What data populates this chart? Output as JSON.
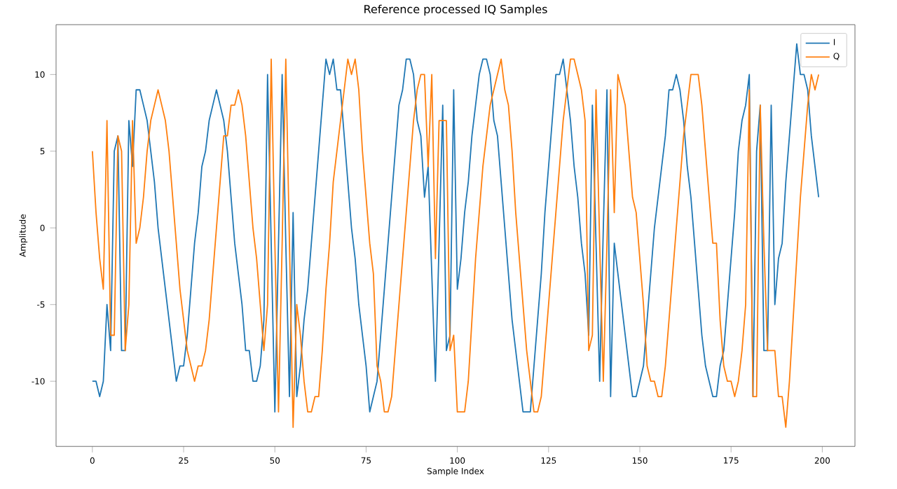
{
  "chart_data": {
    "type": "line",
    "title": "Reference processed IQ Samples",
    "xlabel": "Sample Index",
    "ylabel": "Amplitude",
    "xlim": [
      -9.95,
      208.95
    ],
    "ylim": [
      -14.25,
      13.25
    ],
    "xticks": [
      0,
      25,
      50,
      75,
      100,
      125,
      150,
      175,
      200
    ],
    "yticks": [
      -10,
      -5,
      0,
      5,
      10
    ],
    "x": [
      0,
      1,
      2,
      3,
      4,
      5,
      6,
      7,
      8,
      9,
      10,
      11,
      12,
      13,
      14,
      15,
      16,
      17,
      18,
      19,
      20,
      21,
      22,
      23,
      24,
      25,
      26,
      27,
      28,
      29,
      30,
      31,
      32,
      33,
      34,
      35,
      36,
      37,
      38,
      39,
      40,
      41,
      42,
      43,
      44,
      45,
      46,
      47,
      48,
      49,
      50,
      51,
      52,
      53,
      54,
      55,
      56,
      57,
      58,
      59,
      60,
      61,
      62,
      63,
      64,
      65,
      66,
      67,
      68,
      69,
      70,
      71,
      72,
      73,
      74,
      75,
      76,
      77,
      78,
      79,
      80,
      81,
      82,
      83,
      84,
      85,
      86,
      87,
      88,
      89,
      90,
      91,
      92,
      93,
      94,
      95,
      96,
      97,
      98,
      99,
      100,
      101,
      102,
      103,
      104,
      105,
      106,
      107,
      108,
      109,
      110,
      111,
      112,
      113,
      114,
      115,
      116,
      117,
      118,
      119,
      120,
      121,
      122,
      123,
      124,
      125,
      126,
      127,
      128,
      129,
      130,
      131,
      132,
      133,
      134,
      135,
      136,
      137,
      138,
      139,
      140,
      141,
      142,
      143,
      144,
      145,
      146,
      147,
      148,
      149,
      150,
      151,
      152,
      153,
      154,
      155,
      156,
      157,
      158,
      159,
      160,
      161,
      162,
      163,
      164,
      165,
      166,
      167,
      168,
      169,
      170,
      171,
      172,
      173,
      174,
      175,
      176,
      177,
      178,
      179,
      180,
      181,
      182,
      183,
      184,
      185,
      186,
      187,
      188,
      189,
      190,
      191,
      192,
      193,
      194,
      195,
      196,
      197,
      198,
      199
    ],
    "legend": "top right",
    "grid": false,
    "marker": "none",
    "line_style": "solid",
    "series": [
      {
        "name": "I",
        "color": "#1f77b4",
        "values": [
          -10,
          -10,
          -11,
          -10,
          -5,
          -8,
          5,
          6,
          -8,
          -8,
          7,
          4,
          9,
          9,
          8,
          7,
          5,
          3,
          0,
          -2,
          -4,
          -6,
          -8,
          -10,
          -9,
          -9,
          -7,
          -4,
          -1,
          1,
          4,
          5,
          7,
          8,
          9,
          8,
          7,
          5,
          2,
          -1,
          -3,
          -5,
          -8,
          -8,
          -10,
          -10,
          -9,
          -6,
          10,
          -1,
          -12,
          -1,
          10,
          -1,
          -11,
          1,
          -11,
          -9,
          -6,
          -4,
          -1,
          2,
          5,
          8,
          11,
          10,
          11,
          9,
          9,
          6,
          3,
          0,
          -2,
          -5,
          -7,
          -9,
          -12,
          -11,
          -10,
          -7,
          -4,
          -1,
          2,
          5,
          8,
          9,
          11,
          11,
          10,
          7,
          6,
          2,
          4,
          -3,
          -10,
          -1,
          8,
          -8,
          -7,
          9,
          -4,
          -2,
          1,
          3,
          6,
          8,
          10,
          11,
          11,
          10,
          7,
          6,
          3,
          0,
          -3,
          -6,
          -8,
          -10,
          -12,
          -12,
          -12,
          -9,
          -6,
          -3,
          1,
          4,
          7,
          10,
          10,
          11,
          9,
          7,
          4,
          2,
          -1,
          -3,
          -7,
          8,
          -1,
          -10,
          0,
          9,
          -11,
          -1,
          -3,
          -5,
          -7,
          -9,
          -11,
          -11,
          -10,
          -9,
          -6,
          -3,
          0,
          2,
          4,
          6,
          9,
          9,
          10,
          9,
          7,
          4,
          2,
          -1,
          -4,
          -7,
          -9,
          -10,
          -11,
          -11,
          -9,
          -8,
          -5,
          -2,
          1,
          5,
          7,
          8,
          10,
          -11,
          5,
          8,
          -8,
          -8,
          8,
          -5,
          -2,
          -1,
          3,
          6,
          9,
          12,
          10,
          10,
          9,
          6,
          4,
          2
        ]
      },
      {
        "name": "Q",
        "color": "#ff7f0e",
        "values": [
          5,
          1,
          -2,
          -4,
          7,
          -7,
          -7,
          6,
          5,
          -8,
          -5,
          7,
          -1,
          0,
          2,
          5,
          7,
          8,
          9,
          8,
          7,
          5,
          2,
          -1,
          -4,
          -6,
          -8,
          -9,
          -10,
          -9,
          -9,
          -8,
          -6,
          -3,
          0,
          3,
          6,
          6,
          8,
          8,
          9,
          8,
          6,
          3,
          0,
          -2,
          -5,
          -8,
          -5,
          11,
          -1,
          -12,
          -1,
          11,
          -1,
          -13,
          -5,
          -7,
          -10,
          -12,
          -12,
          -11,
          -11,
          -8,
          -4,
          -1,
          3,
          5,
          7,
          9,
          11,
          10,
          11,
          9,
          5,
          2,
          -1,
          -3,
          -9,
          -10,
          -12,
          -12,
          -11,
          -8,
          -5,
          -2,
          1,
          4,
          7,
          9,
          10,
          10,
          4,
          10,
          -2,
          7,
          7,
          7,
          -8,
          -7,
          -12,
          -12,
          -12,
          -10,
          -6,
          -2,
          1,
          4,
          6,
          8,
          9,
          10,
          11,
          9,
          8,
          5,
          1,
          -2,
          -5,
          -8,
          -10,
          -12,
          -12,
          -11,
          -8,
          -5,
          -2,
          1,
          4,
          7,
          9,
          11,
          11,
          10,
          9,
          7,
          -8,
          -7,
          9,
          -1,
          -10,
          -1,
          9,
          1,
          10,
          9,
          8,
          5,
          2,
          1,
          -2,
          -5,
          -9,
          -10,
          -10,
          -11,
          -11,
          -9,
          -6,
          -3,
          0,
          3,
          6,
          8,
          10,
          10,
          10,
          8,
          5,
          2,
          -1,
          -1,
          -6,
          -9,
          -10,
          -10,
          -11,
          -10,
          -8,
          -5,
          9,
          -11,
          -11,
          8,
          -1,
          -8,
          -8,
          -8,
          -11,
          -11,
          -13,
          -10,
          -6,
          -2,
          2,
          5,
          8,
          10,
          9,
          10
        ]
      }
    ]
  }
}
